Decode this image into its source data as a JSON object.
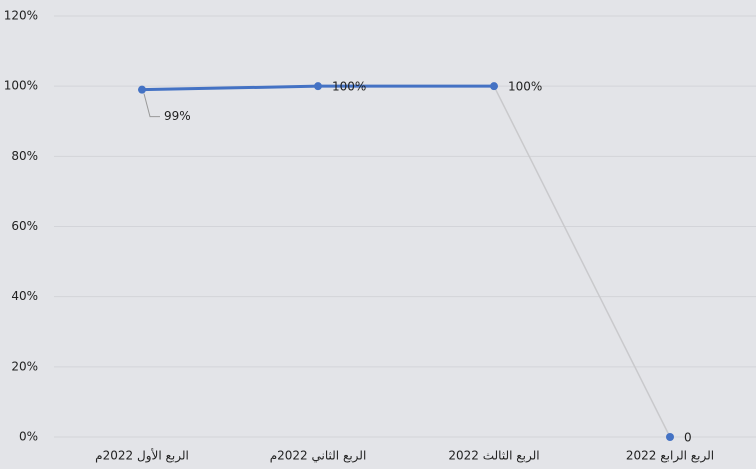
{
  "chart_data": {
    "type": "line",
    "categories": [
      "الربع الأول 2022م",
      "الربع الثاني 2022م",
      "الربع الثالث 2022",
      "الربع الرابع 2022"
    ],
    "series": [
      {
        "values": [
          99,
          100,
          100,
          0
        ],
        "value_labels": [
          "99%",
          "100%",
          "100%",
          "0"
        ],
        "color": "#4472c4"
      }
    ],
    "segment_colors": [
      "#4472c4",
      "#4472c4",
      "#c9c9cc"
    ],
    "ylim": [
      0,
      120
    ],
    "yticks": [
      {
        "value": 0,
        "label": "0%"
      },
      {
        "value": 20,
        "label": "20%"
      },
      {
        "value": 40,
        "label": "40%"
      },
      {
        "value": 60,
        "label": "60%"
      },
      {
        "value": 80,
        "label": "80%"
      },
      {
        "value": 100,
        "label": "100%"
      },
      {
        "value": 120,
        "label": "120%"
      }
    ],
    "grid": true
  }
}
